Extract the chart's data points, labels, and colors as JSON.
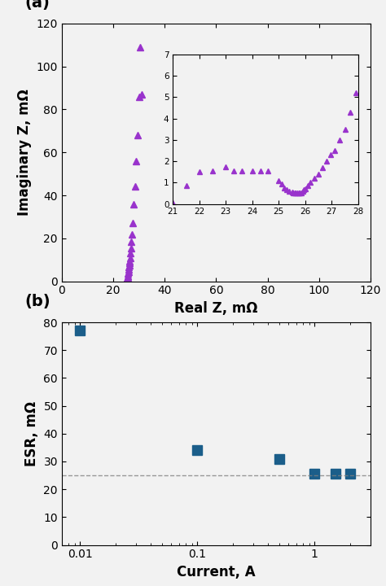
{
  "panel_a": {
    "title": "(a)",
    "xlabel": "Real Z, mΩ",
    "ylabel": "Imaginary Z, mΩ",
    "color": "#9933CC",
    "main_real": [
      25.0,
      25.1,
      25.2,
      25.3,
      25.4,
      25.5,
      25.6,
      25.7,
      25.8,
      25.9,
      26.0,
      26.1,
      26.2,
      26.3,
      26.4,
      26.5,
      26.7,
      26.9,
      27.1,
      27.3,
      27.6,
      28.0,
      28.5,
      29.0,
      29.5,
      30.0,
      30.5,
      31.0
    ],
    "main_imag": [
      0.1,
      0.2,
      0.3,
      0.5,
      0.8,
      1.2,
      1.8,
      2.5,
      3.5,
      4.5,
      5.5,
      6.5,
      7.5,
      8.5,
      9.5,
      11.0,
      13.0,
      15.5,
      18.5,
      22.0,
      27.0,
      36.0,
      44.0,
      56.0,
      68.0,
      86.0,
      109.0,
      87.0
    ],
    "xlim": [
      0,
      120
    ],
    "ylim": [
      0,
      120
    ],
    "xticks": [
      0,
      20,
      40,
      60,
      80,
      100,
      120
    ],
    "yticks": [
      0,
      20,
      40,
      60,
      80,
      100,
      120
    ],
    "inset": {
      "xlim": [
        21,
        28
      ],
      "ylim": [
        0,
        7
      ],
      "xticks": [
        21,
        22,
        23,
        24,
        25,
        26,
        27,
        28
      ],
      "yticks": [
        0,
        1,
        2,
        3,
        4,
        5,
        6,
        7
      ],
      "real": [
        21.0,
        21.5,
        22.0,
        22.5,
        23.0,
        23.3,
        23.6,
        24.0,
        24.3,
        24.6,
        25.0,
        25.1,
        25.2,
        25.3,
        25.4,
        25.5,
        25.55,
        25.6,
        25.65,
        25.7,
        25.75,
        25.8,
        25.85,
        25.9,
        25.95,
        26.0,
        26.1,
        26.2,
        26.35,
        26.5,
        26.65,
        26.8,
        26.95,
        27.1,
        27.3,
        27.5,
        27.7,
        27.9
      ],
      "imag": [
        0.05,
        0.85,
        1.5,
        1.55,
        1.75,
        1.55,
        1.55,
        1.55,
        1.55,
        1.55,
        1.1,
        0.95,
        0.75,
        0.65,
        0.6,
        0.55,
        0.52,
        0.5,
        0.5,
        0.5,
        0.5,
        0.5,
        0.52,
        0.6,
        0.65,
        0.7,
        0.85,
        1.0,
        1.2,
        1.4,
        1.7,
        2.0,
        2.3,
        2.5,
        3.0,
        3.5,
        4.3,
        5.2
      ]
    }
  },
  "panel_b": {
    "title": "(b)",
    "xlabel": "Current, A",
    "ylabel": "ESR, mΩ",
    "color": "#1B5E8A",
    "current": [
      0.01,
      0.1,
      0.5,
      1.0,
      1.5,
      2.0
    ],
    "esr": [
      77.0,
      34.0,
      31.0,
      25.5,
      25.5,
      25.5
    ],
    "dashed_line": 25.0,
    "xlim_log": [
      0.007,
      3.0
    ],
    "ylim": [
      0,
      80
    ],
    "yticks": [
      0,
      10,
      20,
      30,
      40,
      50,
      60,
      70,
      80
    ]
  },
  "bg_color": "#f2f2f2"
}
